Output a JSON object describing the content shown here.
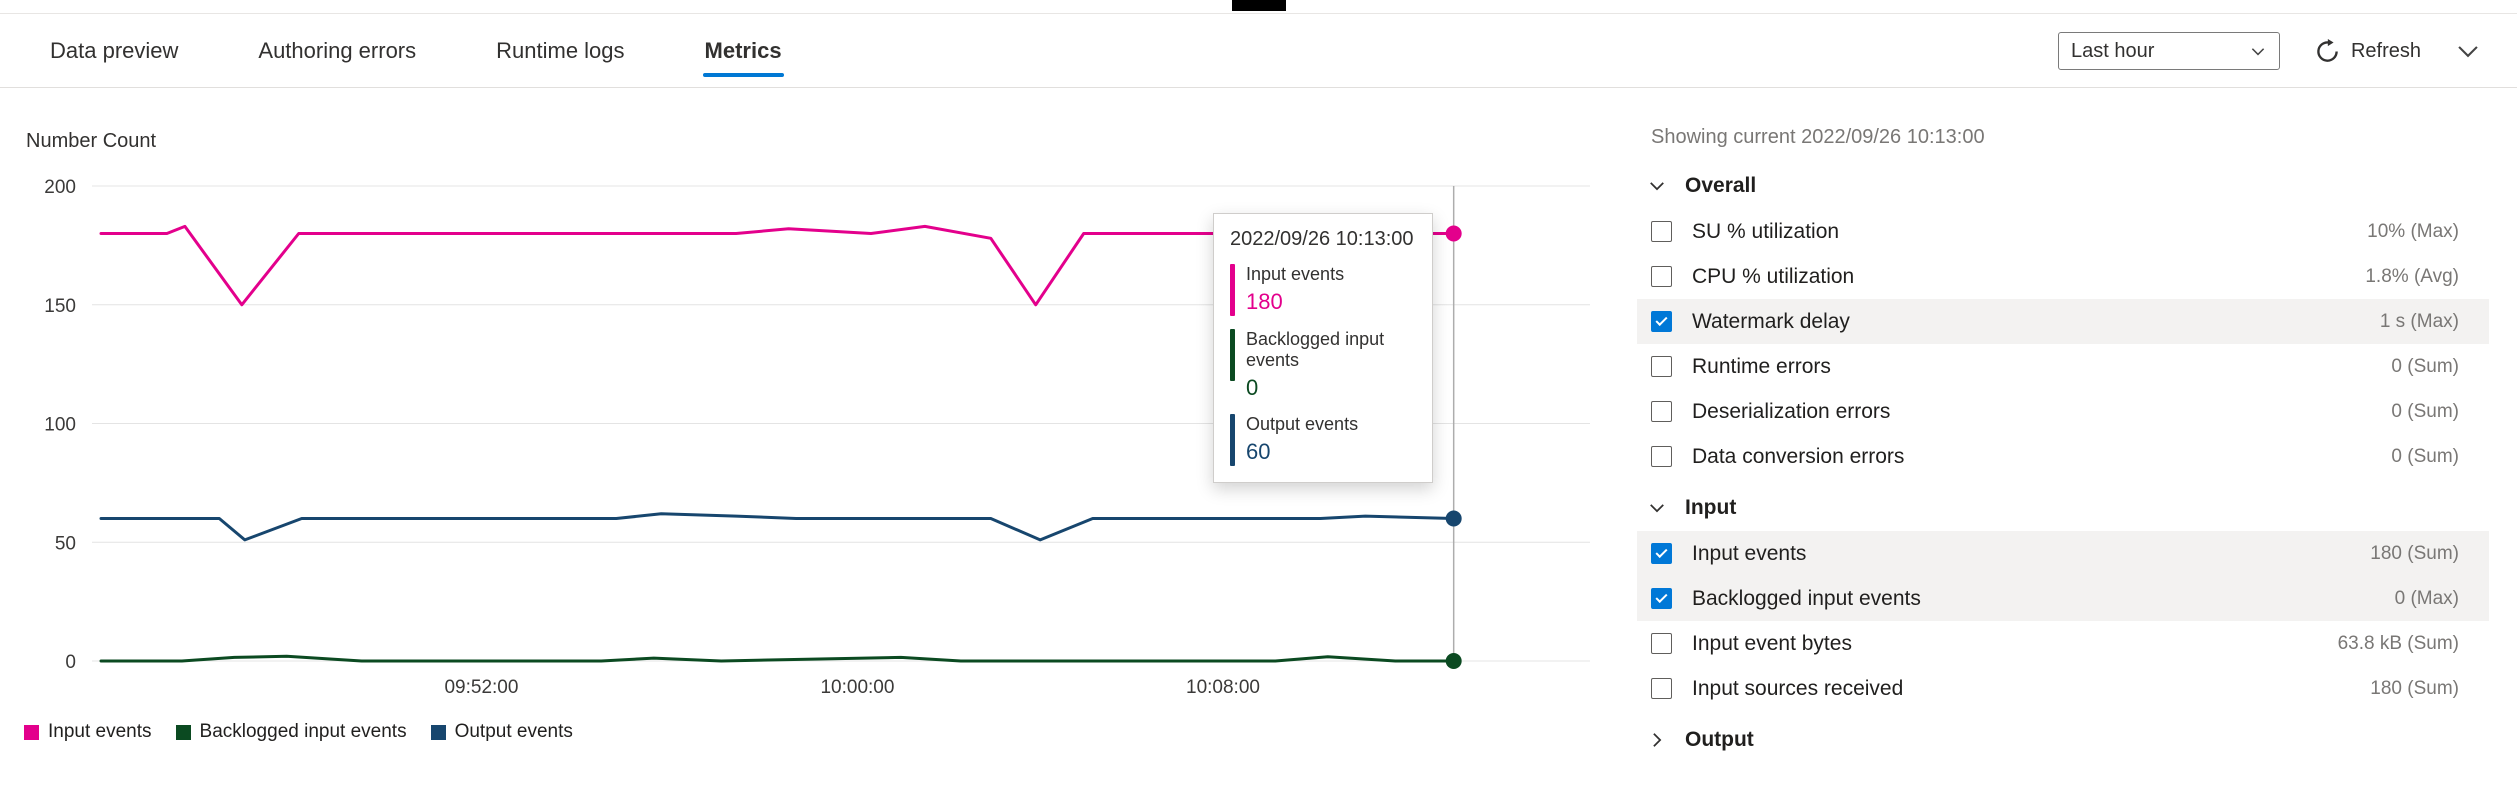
{
  "tabs": [
    {
      "label": "Data preview",
      "active": false
    },
    {
      "label": "Authoring errors",
      "active": false
    },
    {
      "label": "Runtime logs",
      "active": false
    },
    {
      "label": "Metrics",
      "active": true
    }
  ],
  "toolbar": {
    "time_range": "Last hour",
    "refresh_label": "Refresh"
  },
  "chart_data": {
    "type": "line",
    "title": "Number Count",
    "ylabel": "Number Count",
    "ylim": [
      0,
      200
    ],
    "yticks": [
      0,
      50,
      100,
      150,
      200
    ],
    "grid": "horizontal-only",
    "xticks": [
      {
        "label": "09:52:00",
        "pos": 0.26
      },
      {
        "label": "10:00:00",
        "pos": 0.511
      },
      {
        "label": "10:08:00",
        "pos": 0.755
      }
    ],
    "current_time_pos": 0.909,
    "series": [
      {
        "name": "Input events",
        "color": "#e3008c",
        "end_value": 180,
        "points": [
          [
            0.006,
            180
          ],
          [
            0.05,
            180
          ],
          [
            0.062,
            183
          ],
          [
            0.1,
            150
          ],
          [
            0.138,
            180
          ],
          [
            0.43,
            180
          ],
          [
            0.465,
            182
          ],
          [
            0.52,
            180
          ],
          [
            0.556,
            183
          ],
          [
            0.6,
            178
          ],
          [
            0.63,
            150
          ],
          [
            0.662,
            180
          ],
          [
            0.909,
            180
          ]
        ]
      },
      {
        "name": "Backlogged input events",
        "color": "#0b4a21",
        "end_value": 0,
        "points": [
          [
            0.006,
            0
          ],
          [
            0.06,
            0
          ],
          [
            0.095,
            1.5
          ],
          [
            0.13,
            2
          ],
          [
            0.18,
            0
          ],
          [
            0.34,
            0
          ],
          [
            0.375,
            1.2
          ],
          [
            0.42,
            0
          ],
          [
            0.54,
            1.5
          ],
          [
            0.58,
            0
          ],
          [
            0.79,
            0
          ],
          [
            0.825,
            1.8
          ],
          [
            0.87,
            0
          ],
          [
            0.909,
            0
          ]
        ]
      },
      {
        "name": "Output events",
        "color": "#17466e",
        "end_value": 60,
        "points": [
          [
            0.006,
            60
          ],
          [
            0.085,
            60
          ],
          [
            0.102,
            51
          ],
          [
            0.14,
            60
          ],
          [
            0.35,
            60
          ],
          [
            0.38,
            62
          ],
          [
            0.43,
            61
          ],
          [
            0.47,
            60
          ],
          [
            0.6,
            60
          ],
          [
            0.633,
            51
          ],
          [
            0.668,
            60
          ],
          [
            0.82,
            60
          ],
          [
            0.85,
            61
          ],
          [
            0.909,
            60
          ]
        ]
      }
    ],
    "tooltip": {
      "time": "2022/09/26 10:13:00",
      "entries": [
        {
          "label": "Input events",
          "value": "180"
        },
        {
          "label": "Backlogged input events",
          "value": "0"
        },
        {
          "label": "Output events",
          "value": "60"
        }
      ]
    }
  },
  "panel": {
    "showing_current": "Showing current 2022/09/26 10:13:00",
    "overall": {
      "title": "Overall",
      "expanded": true,
      "rows": [
        {
          "label": "SU % utilization",
          "value": "10% (Max)",
          "checked": false
        },
        {
          "label": "CPU % utilization",
          "value": "1.8% (Avg)",
          "checked": false
        },
        {
          "label": "Watermark delay",
          "value": "1 s (Max)",
          "checked": true
        },
        {
          "label": "Runtime errors",
          "value": "0 (Sum)",
          "checked": false
        },
        {
          "label": "Deserialization errors",
          "value": "0 (Sum)",
          "checked": false
        },
        {
          "label": "Data conversion errors",
          "value": "0 (Sum)",
          "checked": false
        }
      ]
    },
    "input": {
      "title": "Input",
      "expanded": true,
      "rows": [
        {
          "label": "Input events",
          "value": "180 (Sum)",
          "checked": true
        },
        {
          "label": "Backlogged input events",
          "value": "0 (Max)",
          "checked": true
        },
        {
          "label": "Input event bytes",
          "value": "63.8 kB (Sum)",
          "checked": false
        },
        {
          "label": "Input sources received",
          "value": "180 (Sum)",
          "checked": false
        }
      ]
    },
    "output": {
      "title": "Output",
      "expanded": false
    }
  }
}
